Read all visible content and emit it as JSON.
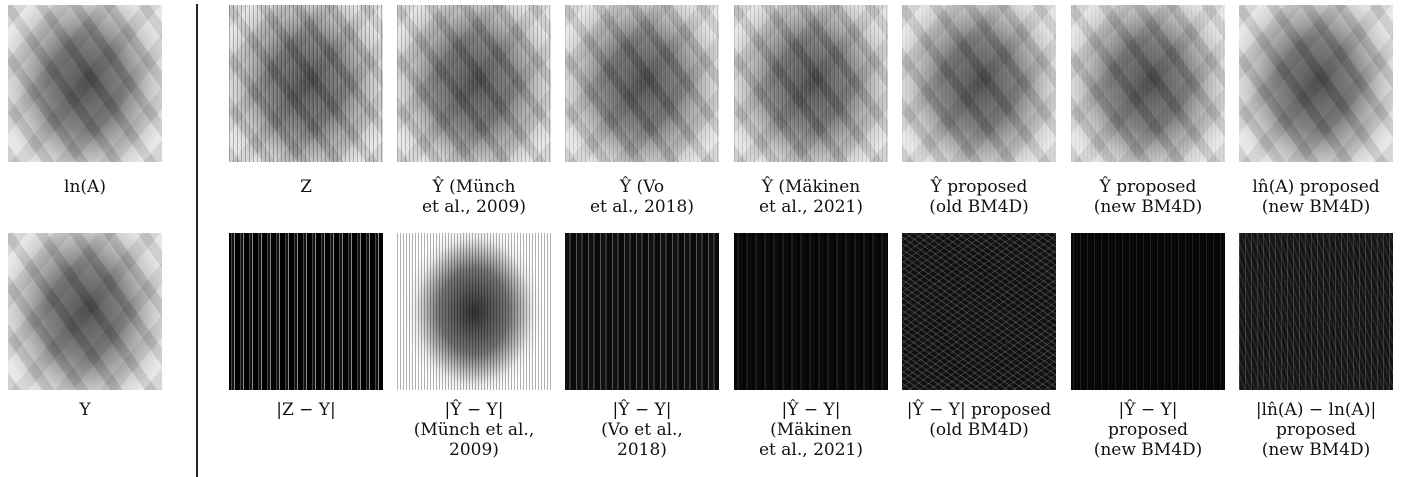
{
  "left": [
    {
      "caption": [
        "ln(A)"
      ]
    },
    {
      "caption": [
        "Y"
      ]
    }
  ],
  "top_row": [
    {
      "caption": [
        "Z"
      ]
    },
    {
      "caption": [
        "Ŷ (Münch",
        "et al., 2009)"
      ]
    },
    {
      "caption": [
        "Ŷ (Vo",
        "et al., 2018)"
      ]
    },
    {
      "caption": [
        "Ŷ (Mäkinen",
        "et al., 2021)"
      ]
    },
    {
      "caption": [
        "Ŷ proposed",
        "(old BM4D)"
      ]
    },
    {
      "caption": [
        "Ŷ proposed",
        "(new BM4D)"
      ]
    },
    {
      "caption": [
        "ln̂(A) proposed",
        "(new BM4D)"
      ]
    }
  ],
  "bottom_row": [
    {
      "caption": [
        "|Z − Y|"
      ]
    },
    {
      "caption": [
        "|Ŷ − Y|",
        "(Münch et al.,",
        "2009)"
      ]
    },
    {
      "caption": [
        "|Ŷ − Y|",
        "(Vo et al.,",
        "2018)"
      ]
    },
    {
      "caption": [
        "|Ŷ − Y|",
        "(Mäkinen",
        "et al., 2021)"
      ]
    },
    {
      "caption": [
        "|Ŷ − Y| proposed",
        "(old BM4D)"
      ]
    },
    {
      "caption": [
        "|Ŷ − Y|",
        "proposed",
        "(new BM4D)"
      ]
    },
    {
      "caption": [
        "|ln̂(A) − ln(A)|",
        "proposed",
        "(new BM4D)"
      ]
    }
  ]
}
